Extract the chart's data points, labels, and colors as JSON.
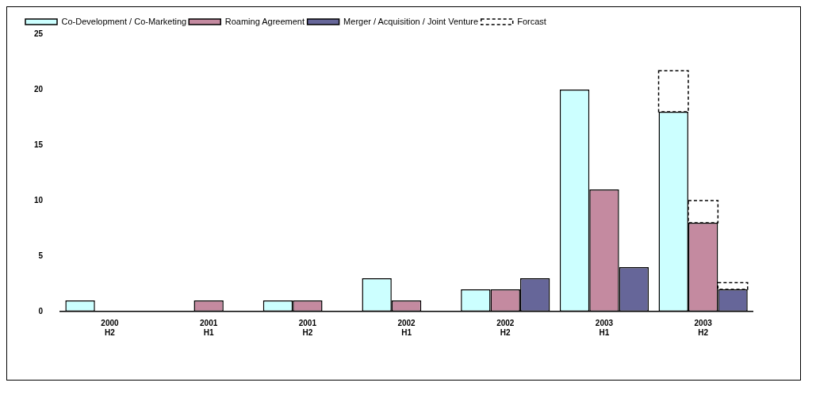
{
  "chart_data": {
    "type": "bar",
    "categories": [
      "2000 H2",
      "2001 H1",
      "2001 H2",
      "2002 H1",
      "2002 H2",
      "2003 H1",
      "2003 H2"
    ],
    "series": [
      {
        "name": "Co-Development / Co-Marketing",
        "color": "#ccffff",
        "values": [
          1,
          0,
          1,
          3,
          2,
          20,
          18
        ]
      },
      {
        "name": "Roaming Agreement",
        "color": "#c48aa0",
        "values": [
          0,
          1,
          1,
          1,
          2,
          11,
          8
        ]
      },
      {
        "name": "Merger / Acquisition / Joint Venture",
        "color": "#666699",
        "values": [
          0,
          0,
          0,
          0,
          3,
          4,
          2
        ]
      },
      {
        "name": "Forcast",
        "color": "#000000",
        "line_style": "dashed",
        "values": [
          null,
          null,
          null,
          null,
          null,
          null,
          3.7
        ],
        "base": [
          null,
          null,
          null,
          null,
          null,
          null,
          18
        ]
      },
      {
        "color": "#000000",
        "line_style": "dashed",
        "values": [
          null,
          null,
          null,
          null,
          null,
          null,
          2
        ],
        "base": [
          null,
          null,
          null,
          null,
          null,
          null,
          8
        ]
      },
      {
        "color": "#000000",
        "line_style": "dashed",
        "values": [
          null,
          null,
          null,
          null,
          null,
          null,
          0.6
        ],
        "base": [
          null,
          null,
          null,
          null,
          null,
          null,
          2
        ]
      }
    ],
    "ylim": [
      0,
      25
    ],
    "yticks": [
      0,
      5,
      10,
      15,
      20,
      25
    ],
    "grid": false,
    "legend": "top"
  }
}
